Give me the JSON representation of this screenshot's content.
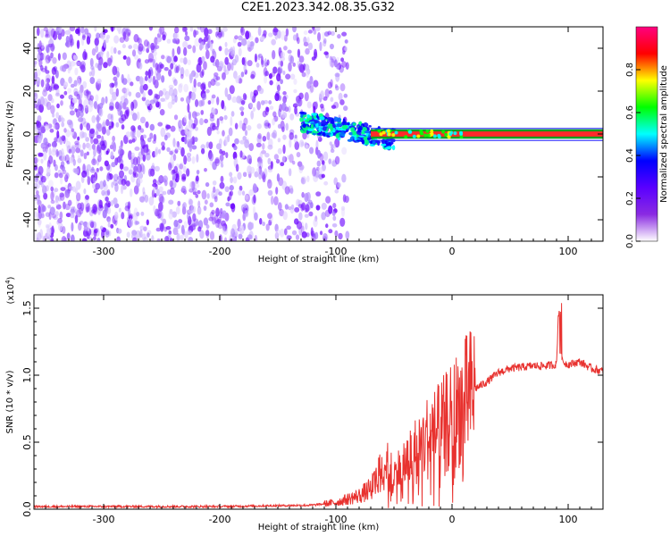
{
  "figure_title": "C2E1.2023.342.08.35.G32",
  "chart_data": [
    {
      "type": "heatmap",
      "xlabel": "Height of straight line (km)",
      "ylabel": "Frequency (Hz)",
      "xlim": [
        -360,
        130
      ],
      "ylim": [
        -50,
        50
      ],
      "xticks": [
        -300,
        -200,
        -100,
        0,
        100
      ],
      "yticks": [
        -40,
        -20,
        0,
        20,
        40
      ],
      "colorbar": {
        "label": "Normalized spectral amplitude",
        "range": [
          0.0,
          1.0
        ],
        "ticks": [
          0.0,
          0.2,
          0.4,
          0.6,
          0.8
        ],
        "colors": [
          "#ffffff",
          "#8a2be2",
          "#5a00ff",
          "#0000ff",
          "#00ffff",
          "#00ff00",
          "#ffff00",
          "#ff0000",
          "#ff0080"
        ]
      },
      "features": [
        {
          "description_x_range": [
            -360,
            -100
          ],
          "frequency_range": [
            -50,
            50
          ],
          "amplitude": 0.05
        },
        {
          "description_x_range": [
            -130,
            -60
          ],
          "frequency_range": [
            -10,
            10
          ],
          "amplitude": 0.35
        },
        {
          "description_x_range": [
            -60,
            130
          ],
          "frequency_range": [
            -1,
            1
          ],
          "amplitude": 0.9
        }
      ]
    },
    {
      "type": "line",
      "xlabel": "Height of straight line (km)",
      "ylabel": "SNR (10 * v/v)",
      "scale_label": "(x10",
      "scale_exp": "4",
      "scale_close": ")",
      "xlim": [
        -360,
        130
      ],
      "ylim": [
        0.0,
        1.6
      ],
      "xticks": [
        -300,
        -200,
        -100,
        0,
        100
      ],
      "yticks": [
        0.0,
        0.5,
        1.0,
        1.5
      ],
      "series": [
        {
          "color": "#e8322f",
          "x": [
            -360,
            -300,
            -200,
            -120,
            -100,
            -80,
            -70,
            -60,
            -55,
            -50,
            -45,
            -40,
            -30,
            -20,
            -10,
            0,
            10,
            20,
            30,
            40,
            50,
            60,
            70,
            80,
            90,
            92,
            95,
            100,
            110,
            120,
            130
          ],
          "y": [
            0.02,
            0.02,
            0.02,
            0.03,
            0.05,
            0.1,
            0.15,
            0.3,
            0.4,
            0.25,
            0.3,
            0.35,
            0.45,
            0.55,
            0.6,
            0.7,
            0.8,
            0.9,
            0.95,
            1.02,
            1.05,
            1.06,
            1.07,
            1.07,
            1.08,
            1.55,
            1.1,
            1.08,
            1.1,
            1.05,
            1.03
          ]
        }
      ]
    }
  ]
}
